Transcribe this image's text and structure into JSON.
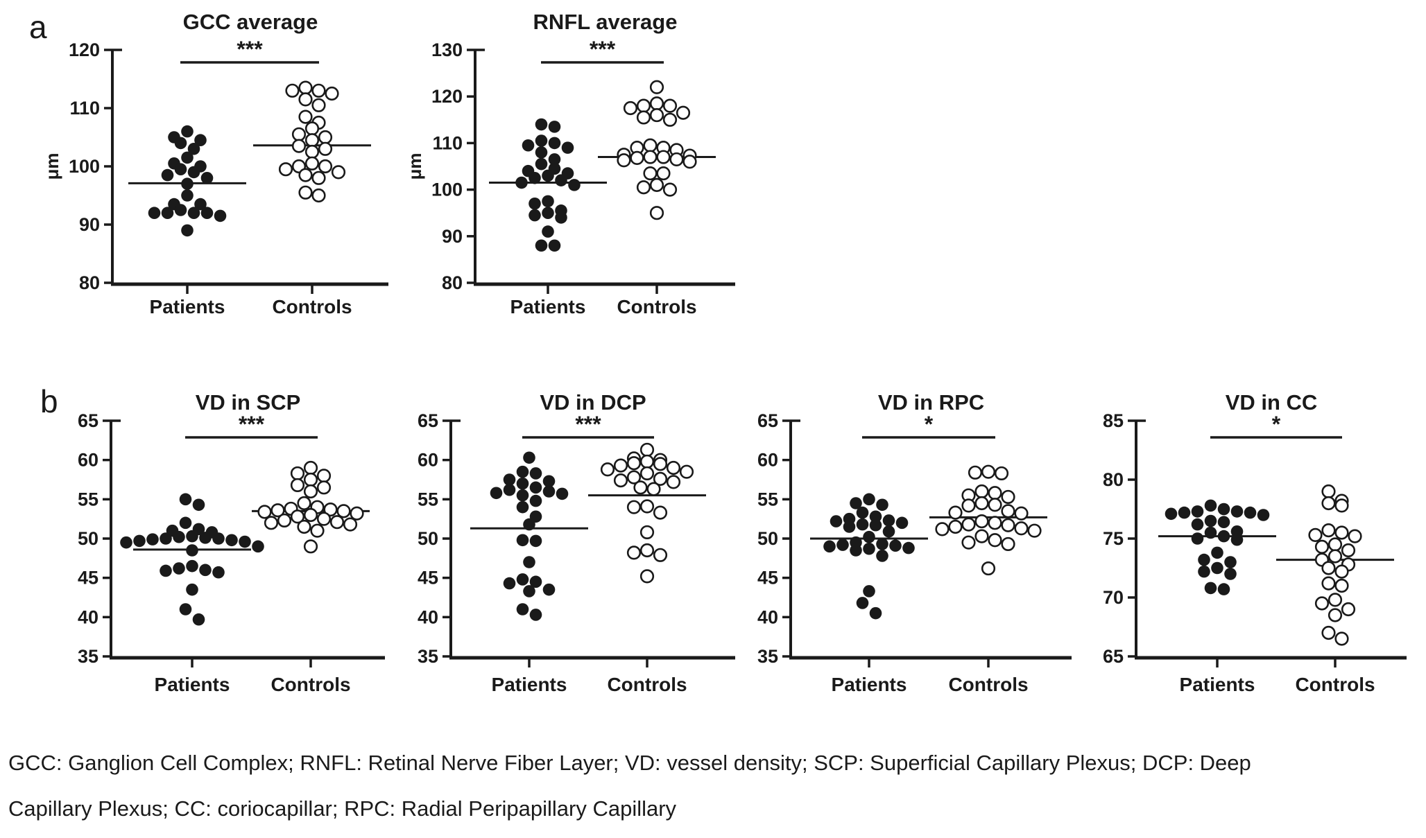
{
  "figure": {
    "panel_a_label": "a",
    "panel_b_label": "b",
    "caption_line1": "GCC: Ganglion Cell Complex; RNFL: Retinal Nerve Fiber Layer; VD: vessel density; SCP: Superficial Capillary Plexus; DCP: Deep",
    "caption_line2": "Capillary Plexus; CC: coriocapillar; RPC: Radial Peripapillary Capillary",
    "colors": {
      "ink": "#1a1a1a",
      "background": "#ffffff"
    }
  },
  "chart_data": [
    {
      "type": "scatter",
      "panel": "a",
      "title": "GCC average",
      "ylabel": "μm",
      "significance": "***",
      "ylim": [
        80,
        120
      ],
      "yticks": [
        80,
        90,
        100,
        110,
        120
      ],
      "categories": [
        "Patients",
        "Controls"
      ],
      "series": [
        {
          "name": "Patients",
          "marker": "filled-circle",
          "mean": 97.1,
          "values": [
            106,
            105,
            104.5,
            104,
            103,
            101.5,
            100.5,
            100,
            99.5,
            99,
            98.5,
            98,
            97,
            95,
            93.5,
            93.5,
            92.5,
            92,
            92,
            92,
            92,
            91.5,
            89
          ]
        },
        {
          "name": "Controls",
          "marker": "open-circle",
          "mean": 103.6,
          "values": [
            113.5,
            113,
            113,
            112.5,
            111.5,
            110.5,
            108.5,
            107.5,
            106.5,
            105.5,
            105,
            104.5,
            103.5,
            103,
            102.5,
            100.5,
            100,
            100,
            99.5,
            99,
            98.5,
            98,
            95.5,
            95
          ]
        }
      ]
    },
    {
      "type": "scatter",
      "panel": "a",
      "title": "RNFL average",
      "ylabel": "μm",
      "significance": "***",
      "ylim": [
        80,
        130
      ],
      "yticks": [
        80,
        90,
        100,
        110,
        120,
        130
      ],
      "categories": [
        "Patients",
        "Controls"
      ],
      "series": [
        {
          "name": "Patients",
          "marker": "filled-circle",
          "mean": 101.5,
          "values": [
            114,
            113.5,
            110.5,
            110,
            109.5,
            109,
            108,
            106.5,
            105.5,
            104.5,
            104,
            103.5,
            103,
            102.5,
            102,
            101.5,
            101,
            97.5,
            97,
            95.5,
            95,
            94.5,
            94,
            91,
            88,
            88
          ]
        },
        {
          "name": "Controls",
          "marker": "open-circle",
          "mean": 107.0,
          "values": [
            122,
            118.5,
            118,
            118,
            117.5,
            116.5,
            116,
            115.5,
            115,
            109.5,
            109,
            109,
            108.5,
            107.5,
            107.3,
            107,
            107,
            106.8,
            106.5,
            106.3,
            106,
            103.5,
            103.5,
            101,
            100.5,
            100,
            95
          ]
        }
      ]
    },
    {
      "type": "scatter",
      "panel": "b",
      "title": "VD in SCP",
      "ylabel": "",
      "significance": "***",
      "ylim": [
        35,
        65
      ],
      "yticks": [
        35,
        40,
        45,
        50,
        55,
        60,
        65
      ],
      "categories": [
        "Patients",
        "Controls"
      ],
      "series": [
        {
          "name": "Patients",
          "marker": "filled-circle",
          "mean": 48.6,
          "values": [
            55,
            54.3,
            52,
            51.2,
            51,
            50.8,
            50.3,
            50.2,
            50.1,
            50,
            50,
            49.9,
            49.8,
            49.7,
            49.6,
            49.5,
            49,
            48.5,
            46.5,
            46.2,
            46,
            45.9,
            45.7,
            43.5,
            41,
            39.7
          ]
        },
        {
          "name": "Controls",
          "marker": "open-circle",
          "mean": 53.5,
          "values": [
            59,
            58.3,
            58,
            57.5,
            56.8,
            56.5,
            56,
            54.5,
            54,
            53.8,
            53.7,
            53.6,
            53.5,
            53.4,
            53.2,
            53,
            52.8,
            52.5,
            52.3,
            52.1,
            52,
            51.8,
            51.5,
            51,
            49
          ]
        }
      ]
    },
    {
      "type": "scatter",
      "panel": "b",
      "title": "VD in DCP",
      "ylabel": "",
      "significance": "***",
      "ylim": [
        35,
        65
      ],
      "yticks": [
        35,
        40,
        45,
        50,
        55,
        60,
        65
      ],
      "categories": [
        "Patients",
        "Controls"
      ],
      "series": [
        {
          "name": "Patients",
          "marker": "filled-circle",
          "mean": 51.3,
          "values": [
            60.3,
            58.5,
            58.3,
            57.5,
            57.3,
            57,
            56.5,
            56.2,
            56,
            55.8,
            55.7,
            55.5,
            54.8,
            54,
            52.8,
            51.8,
            49.8,
            49.7,
            47,
            44.8,
            44.5,
            44.3,
            43.5,
            43.3,
            41,
            40.3
          ]
        },
        {
          "name": "Controls",
          "marker": "open-circle",
          "mean": 55.5,
          "values": [
            61.3,
            60.2,
            60,
            59.8,
            59.6,
            59.5,
            59.3,
            59,
            58.8,
            58.5,
            58.3,
            57.8,
            57.6,
            57.4,
            57.2,
            56.5,
            56.3,
            54.1,
            54,
            53.3,
            50.8,
            48.5,
            48.2,
            47.9,
            45.2
          ]
        }
      ]
    },
    {
      "type": "scatter",
      "panel": "b",
      "title": "VD in RPC",
      "ylabel": "",
      "significance": "*",
      "ylim": [
        35,
        65
      ],
      "yticks": [
        35,
        40,
        45,
        50,
        55,
        60,
        65
      ],
      "categories": [
        "Patients",
        "Controls"
      ],
      "series": [
        {
          "name": "Patients",
          "marker": "filled-circle",
          "mean": 50.0,
          "values": [
            55,
            54.5,
            54.3,
            53.3,
            52.8,
            52.5,
            52.3,
            52.2,
            52,
            51.8,
            51.7,
            51.5,
            50.9,
            50.2,
            49.5,
            49.3,
            49.2,
            49.1,
            49,
            48.8,
            48.7,
            48.5,
            47.8,
            43.3,
            41.8,
            40.5
          ]
        },
        {
          "name": "Controls",
          "marker": "open-circle",
          "mean": 52.7,
          "values": [
            58.5,
            58.4,
            58.3,
            56,
            55.8,
            55.5,
            55.3,
            54.5,
            54.3,
            54.2,
            53.5,
            53.3,
            53.2,
            52.2,
            52,
            51.8,
            51.7,
            51.5,
            51.3,
            51.2,
            51,
            50.3,
            49.8,
            49.5,
            49.3,
            46.2
          ]
        }
      ]
    },
    {
      "type": "scatter",
      "panel": "b",
      "title": "VD in CC",
      "ylabel": "",
      "significance": "*",
      "ylim": [
        65,
        85
      ],
      "yticks": [
        65,
        70,
        75,
        80,
        85
      ],
      "categories": [
        "Patients",
        "Controls"
      ],
      "series": [
        {
          "name": "Patients",
          "marker": "filled-circle",
          "mean": 75.2,
          "values": [
            77.8,
            77.5,
            77.3,
            77.3,
            77.2,
            77.2,
            77.1,
            77,
            76.5,
            76.4,
            76.2,
            75.6,
            75.5,
            75.2,
            75,
            74.9,
            73.8,
            73.2,
            73,
            72.5,
            72.2,
            72,
            70.8,
            70.7
          ]
        },
        {
          "name": "Controls",
          "marker": "open-circle",
          "mean": 73.2,
          "values": [
            79,
            78.2,
            78,
            77.8,
            75.7,
            75.5,
            75.3,
            75.2,
            74.5,
            74.3,
            74,
            73.5,
            73.2,
            72.8,
            72.5,
            72.2,
            71.2,
            71,
            69.8,
            69.5,
            69,
            68.5,
            67,
            66.5
          ]
        }
      ]
    }
  ]
}
